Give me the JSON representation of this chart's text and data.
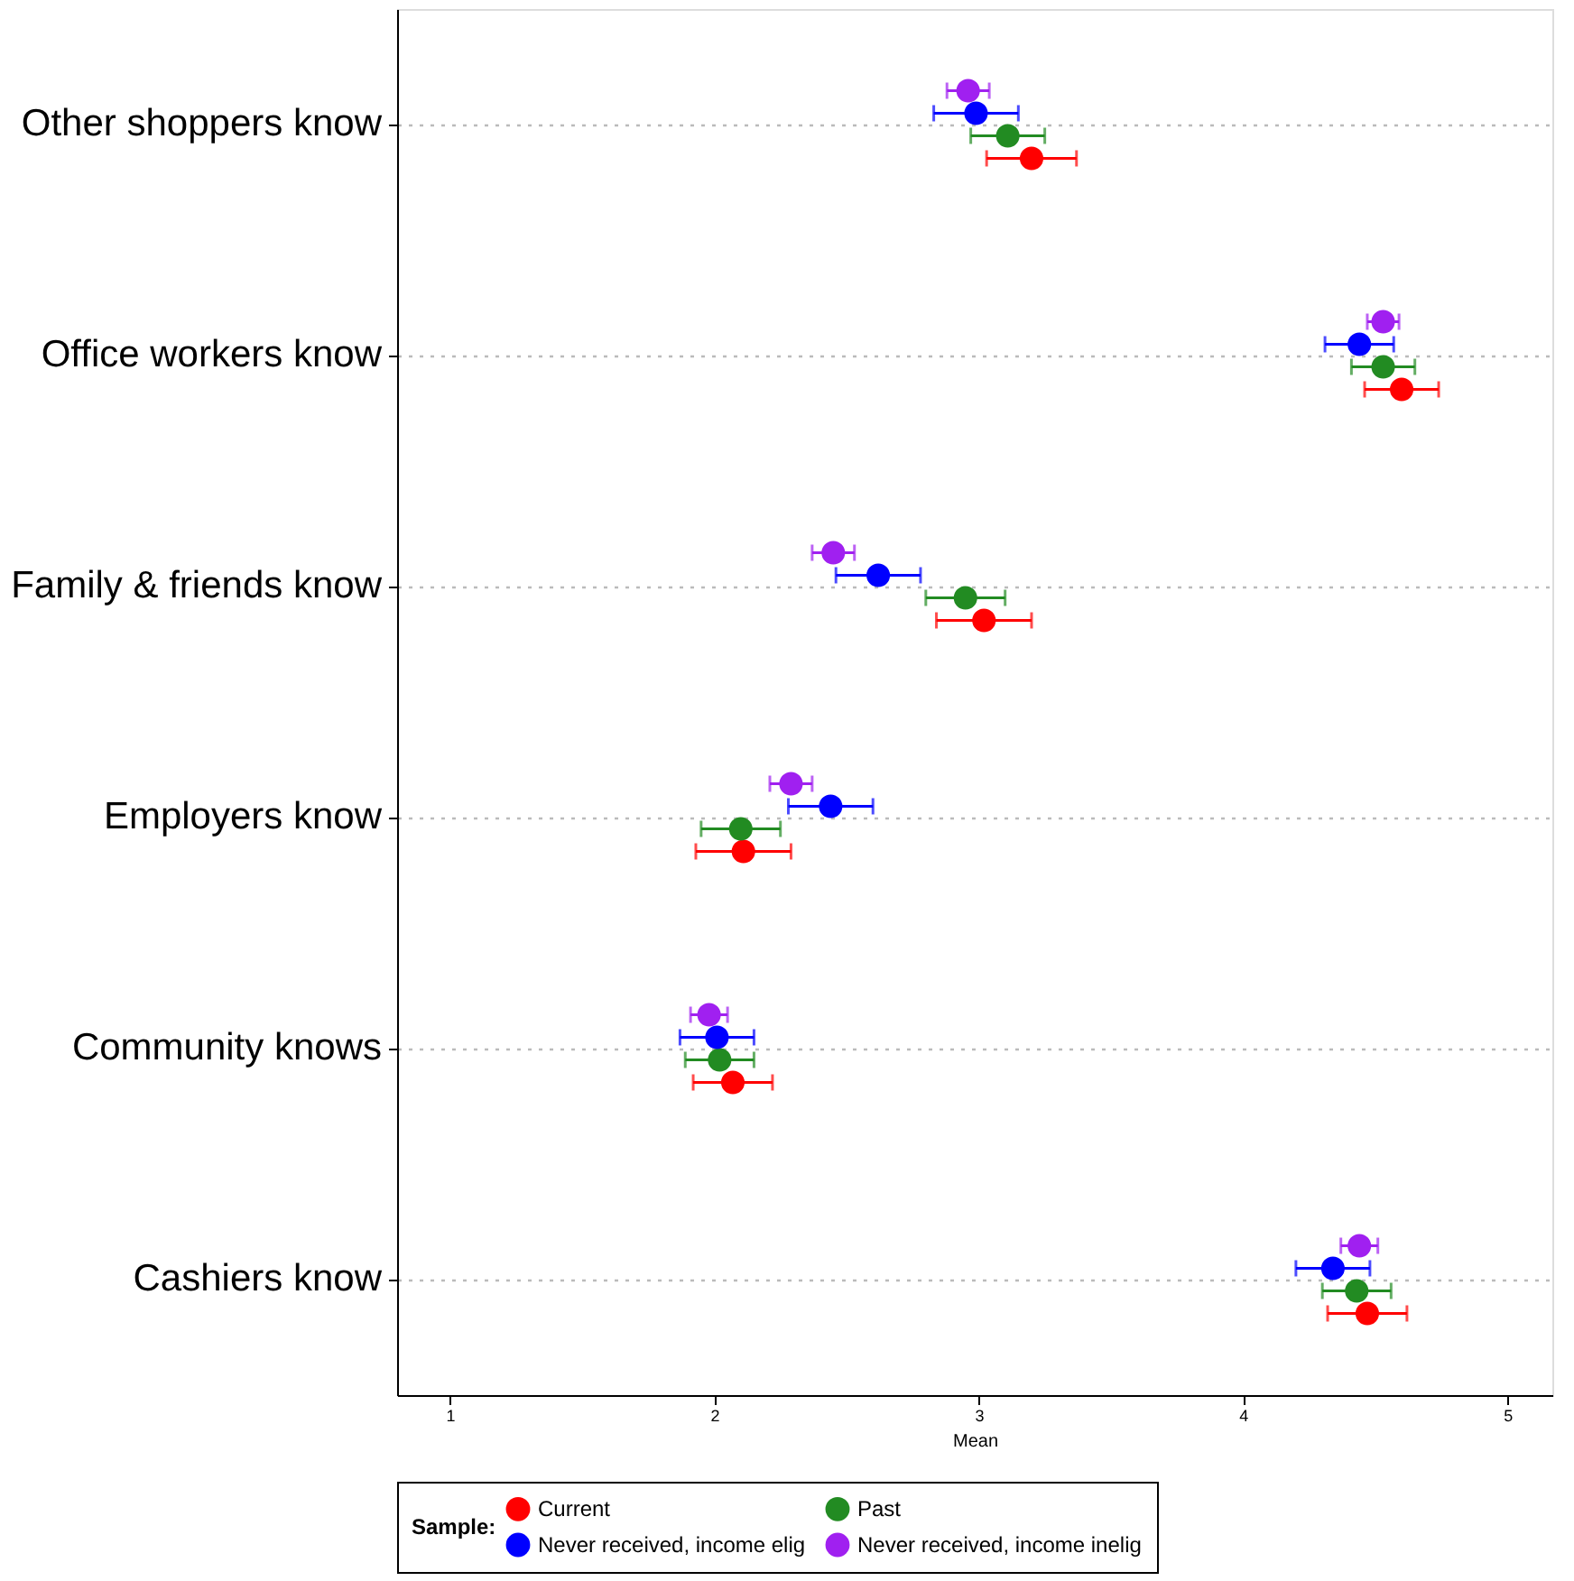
{
  "chart_data": {
    "type": "scatter",
    "xlabel": "Mean",
    "legend_title": "Sample:",
    "categories": [
      "Other shoppers know",
      "Office workers know",
      "Family & friends know",
      "Employers know",
      "Community knows",
      "Cashiers know"
    ],
    "series": [
      {
        "name": "Current",
        "color": "#ff0000",
        "values": [
          3.2,
          4.6,
          3.02,
          2.11,
          2.07,
          4.47
        ],
        "errors": [
          0.17,
          0.14,
          0.18,
          0.18,
          0.15,
          0.15
        ]
      },
      {
        "name": "Past",
        "color": "#228b22",
        "values": [
          3.11,
          4.53,
          2.95,
          2.1,
          2.02,
          4.43
        ],
        "errors": [
          0.14,
          0.12,
          0.15,
          0.15,
          0.13,
          0.13
        ]
      },
      {
        "name": "Never received, income elig",
        "color": "#0000ff",
        "values": [
          2.99,
          4.44,
          2.62,
          2.44,
          2.01,
          4.34
        ],
        "errors": [
          0.16,
          0.13,
          0.16,
          0.16,
          0.14,
          0.14
        ]
      },
      {
        "name": "Never received, income inelig",
        "color": "#a020f0",
        "values": [
          2.96,
          4.53,
          2.45,
          2.29,
          1.98,
          4.44
        ],
        "errors": [
          0.08,
          0.06,
          0.08,
          0.08,
          0.07,
          0.07
        ]
      }
    ],
    "xlim": [
      0.8,
      5.17
    ],
    "xticks": [
      1,
      2,
      3,
      4,
      5
    ],
    "grid": "y",
    "legend": "bottom",
    "marker": "circle",
    "orientation": "horizontal"
  }
}
